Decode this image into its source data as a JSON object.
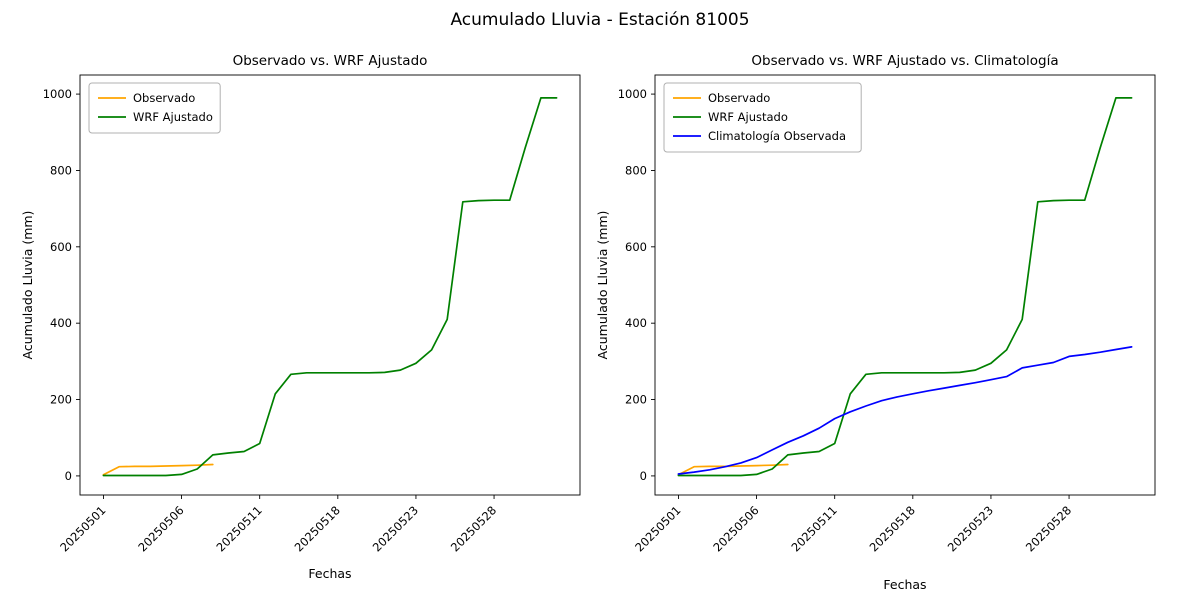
{
  "figure": {
    "title": "Acumulado Lluvia - Estación 81005",
    "background": "#ffffff"
  },
  "chart_data": [
    {
      "type": "line",
      "title": "Observado vs. WRF Ajustado",
      "xlabel": "Fechas",
      "ylabel": "Acumulado Lluvia (mm)",
      "grid": false,
      "legend_position": "upper-left",
      "xlim": [
        -1.5,
        30.5
      ],
      "ylim": [
        -50,
        1050
      ],
      "yticks": [
        0,
        200,
        400,
        600,
        800,
        1000
      ],
      "xticks": [
        {
          "pos": 0,
          "label": "20250501"
        },
        {
          "pos": 5,
          "label": "20250506"
        },
        {
          "pos": 10,
          "label": "20250511"
        },
        {
          "pos": 15,
          "label": "20250518"
        },
        {
          "pos": 20,
          "label": "20250523"
        },
        {
          "pos": 25,
          "label": "20250528"
        }
      ],
      "series": [
        {
          "name": "Observado",
          "color": "#FFA500",
          "x": [
            0,
            1,
            2,
            3,
            4,
            5,
            6,
            7
          ],
          "y": [
            3,
            24,
            25,
            25,
            26,
            27,
            28,
            30
          ]
        },
        {
          "name": "WRF Ajustado",
          "color": "#008000",
          "x": [
            0,
            1,
            2,
            3,
            4,
            5,
            6,
            7,
            8,
            9,
            10,
            11,
            12,
            13,
            14,
            15,
            16,
            17,
            18,
            19,
            20,
            21,
            22,
            23,
            24,
            25,
            26,
            27,
            28,
            29
          ],
          "y": [
            1,
            1,
            1,
            1,
            1,
            4,
            18,
            55,
            60,
            64,
            85,
            215,
            266,
            270,
            270,
            270,
            270,
            270,
            271,
            277,
            295,
            330,
            410,
            718,
            721,
            722,
            722,
            860,
            990,
            990
          ]
        }
      ]
    },
    {
      "type": "line",
      "title": "Observado vs. WRF Ajustado vs. Climatología",
      "xlabel": "Fechas",
      "ylabel": "Acumulado Lluvia (mm)",
      "grid": false,
      "legend_position": "upper-left",
      "xlim": [
        -1.5,
        30.5
      ],
      "ylim": [
        -50,
        1050
      ],
      "yticks": [
        0,
        200,
        400,
        600,
        800,
        1000
      ],
      "xticks": [
        {
          "pos": 0,
          "label": "20250501"
        },
        {
          "pos": 5,
          "label": "20250506"
        },
        {
          "pos": 10,
          "label": "20250511"
        },
        {
          "pos": 15,
          "label": "20250518"
        },
        {
          "pos": 20,
          "label": "20250523"
        },
        {
          "pos": 25,
          "label": "20250528"
        }
      ],
      "series": [
        {
          "name": "Observado",
          "color": "#FFA500",
          "x": [
            0,
            1,
            2,
            3,
            4,
            5,
            6,
            7
          ],
          "y": [
            3,
            24,
            25,
            25,
            26,
            27,
            28,
            30
          ]
        },
        {
          "name": "WRF Ajustado",
          "color": "#008000",
          "x": [
            0,
            1,
            2,
            3,
            4,
            5,
            6,
            7,
            8,
            9,
            10,
            11,
            12,
            13,
            14,
            15,
            16,
            17,
            18,
            19,
            20,
            21,
            22,
            23,
            24,
            25,
            26,
            27,
            28,
            29
          ],
          "y": [
            1,
            1,
            1,
            1,
            1,
            4,
            18,
            55,
            60,
            64,
            85,
            215,
            266,
            270,
            270,
            270,
            270,
            270,
            271,
            277,
            295,
            330,
            410,
            718,
            721,
            722,
            722,
            860,
            990,
            990
          ]
        },
        {
          "name": "Climatología Observada",
          "color": "#0000FF",
          "x": [
            0,
            1,
            2,
            3,
            4,
            5,
            6,
            7,
            8,
            9,
            10,
            11,
            12,
            13,
            14,
            15,
            16,
            17,
            18,
            19,
            20,
            21,
            22,
            23,
            24,
            25,
            26,
            27,
            28,
            29
          ],
          "y": [
            5,
            10,
            16,
            24,
            34,
            48,
            68,
            88,
            105,
            125,
            150,
            168,
            183,
            197,
            207,
            215,
            223,
            230,
            237,
            244,
            252,
            260,
            283,
            290,
            297,
            313,
            318,
            324,
            331,
            338
          ]
        }
      ]
    }
  ]
}
